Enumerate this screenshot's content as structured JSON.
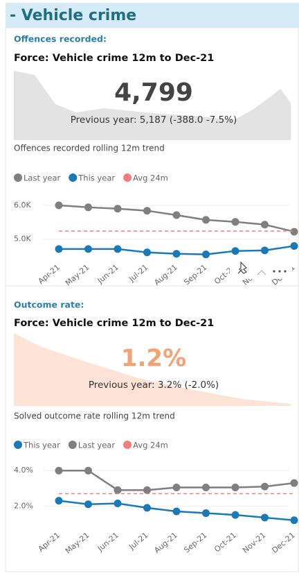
{
  "header": {
    "title": "- Vehicle crime"
  },
  "offences": {
    "heading": "Offences recorded:",
    "subtitle": "Force: Vehicle crime 12m to Dec-21",
    "kpi": "4,799",
    "previous": "Previous year: 5,187 (-388.0 -7.5%)",
    "trend_title": "Offences recorded rolling 12m trend"
  },
  "outcome": {
    "heading": "Outcome rate:",
    "subtitle": "Force: Vehicle crime 12m to Dec-21",
    "kpi": "1.2%",
    "previous": "Previous year: 3.2% (-2.0%)",
    "trend_title": "Solved outcome rate rolling 12m trend"
  },
  "chart_data": [
    {
      "type": "line",
      "categories": [
        "Apr-21",
        "May-21",
        "Jun-21",
        "Jul-21",
        "Aug-21",
        "Sep-21",
        "Oct-21",
        "Nov-21",
        "Dec-21"
      ],
      "series": [
        {
          "name": "Last year",
          "color": "#7f7f7f",
          "values": [
            6000,
            5940,
            5900,
            5840,
            5710,
            5570,
            5510,
            5430,
            5220
          ]
        },
        {
          "name": "This year",
          "color": "#1a7ab8",
          "values": [
            4710,
            4710,
            4710,
            4610,
            4570,
            4550,
            4650,
            4670,
            4800
          ]
        },
        {
          "name": "Avg 24m",
          "color": "#f07e7e",
          "dashed": true,
          "values": [
            5240,
            5240,
            5240,
            5240,
            5240,
            5240,
            5240,
            5240,
            5240
          ]
        }
      ],
      "ylim": [
        4400,
        6100
      ],
      "yticks": [
        {
          "value": 5000,
          "label": "5.0K"
        },
        {
          "value": 6000,
          "label": "6.0K"
        }
      ],
      "grid": true,
      "legend": "top"
    },
    {
      "type": "line",
      "categories": [
        "Apr-21",
        "May-21",
        "Jun-21",
        "Jul-21",
        "Aug-21",
        "Sep-21",
        "Oct-21",
        "Nov-21",
        "Dec-21"
      ],
      "series": [
        {
          "name": "This year",
          "color": "#1a7ab8",
          "values": [
            2.3,
            2.1,
            2.15,
            1.9,
            1.7,
            1.6,
            1.5,
            1.35,
            1.2
          ]
        },
        {
          "name": "Last year",
          "color": "#7f7f7f",
          "values": [
            4.0,
            4.0,
            2.9,
            2.9,
            3.05,
            3.05,
            3.05,
            3.1,
            3.3
          ]
        },
        {
          "name": "Avg 24m",
          "color": "#f07e7e",
          "dashed": true,
          "values": [
            2.7,
            2.7,
            2.7,
            2.7,
            2.7,
            2.7,
            2.7,
            2.7,
            2.7
          ]
        }
      ],
      "ylim": [
        0.8,
        4.4
      ],
      "yticks": [
        {
          "value": 2.0,
          "label": "2.0%"
        },
        {
          "value": 4.0,
          "label": "4.0%"
        }
      ],
      "grid": true,
      "legend": "top"
    }
  ]
}
